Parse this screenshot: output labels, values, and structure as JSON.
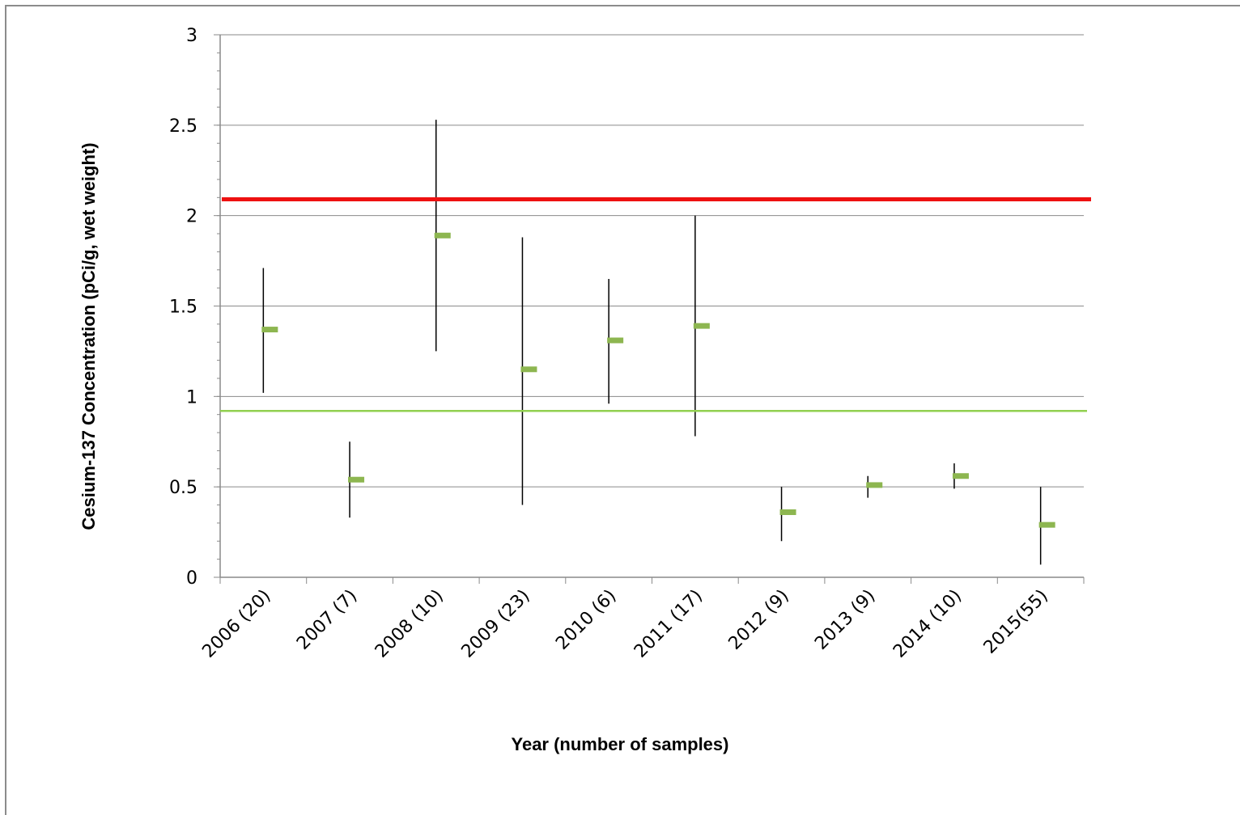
{
  "chart_data": {
    "type": "scatter",
    "title": "",
    "xlabel": "Year (number of samples)",
    "ylabel": "Cesium-137  Concentration (pCi/g, wet weight)",
    "ylim": [
      0,
      3
    ],
    "yticks": [
      "0",
      "0.5",
      "1",
      "1.5",
      "2",
      "2.5",
      "3"
    ],
    "grid": "horizontal",
    "categories": [
      "2006 (20)",
      "2007 (7)",
      "2008 (10)",
      "2009 (23)",
      "2010 (6)",
      "2011 (17)",
      "2012 (9)",
      "2013 (9)",
      "2014 (10)",
      "2015(55)"
    ],
    "series": [
      {
        "marker": "dash",
        "color": "#8db650",
        "values": [
          1.37,
          0.54,
          1.89,
          1.15,
          1.31,
          1.39,
          0.36,
          0.51,
          0.56,
          0.29
        ]
      }
    ],
    "ranges": {
      "low": [
        1.02,
        0.33,
        1.25,
        0.4,
        0.96,
        0.78,
        0.2,
        0.44,
        0.49,
        0.07
      ],
      "high": [
        1.71,
        0.75,
        2.53,
        1.88,
        1.65,
        2.0,
        0.5,
        0.56,
        0.63,
        0.5
      ],
      "color": "#000000"
    },
    "reference_lines": [
      {
        "value": 2.09,
        "color": "#ee1111"
      },
      {
        "value": 0.92,
        "color": "#92d050"
      }
    ]
  }
}
